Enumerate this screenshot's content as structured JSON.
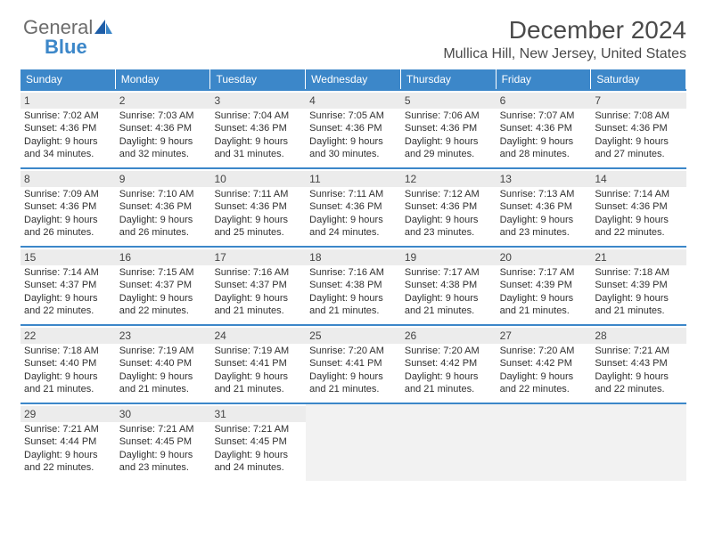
{
  "logo": {
    "text1": "General",
    "text2": "Blue"
  },
  "title": "December 2024",
  "location": "Mullica Hill, New Jersey, United States",
  "colors": {
    "header_bg": "#3c87c9",
    "header_text": "#ffffff",
    "week_rule": "#3c87c9",
    "daynum_shade": "#ececec",
    "empty_bg": "#f2f2f2",
    "body_text": "#303030",
    "title_text": "#4a4a4a"
  },
  "typography": {
    "title_fontsize": 28,
    "location_fontsize": 16,
    "dayheader_fontsize": 12,
    "cell_fontsize": 11,
    "daynum_fontsize": 12
  },
  "layout": {
    "columns": 7,
    "rows": 5,
    "cell_min_height": 86,
    "header_row_height": 22
  },
  "day_headers": [
    "Sunday",
    "Monday",
    "Tuesday",
    "Wednesday",
    "Thursday",
    "Friday",
    "Saturday"
  ],
  "weeks": [
    [
      {
        "n": "1",
        "sr": "Sunrise: 7:02 AM",
        "ss": "Sunset: 4:36 PM",
        "d1": "Daylight: 9 hours",
        "d2": "and 34 minutes."
      },
      {
        "n": "2",
        "sr": "Sunrise: 7:03 AM",
        "ss": "Sunset: 4:36 PM",
        "d1": "Daylight: 9 hours",
        "d2": "and 32 minutes."
      },
      {
        "n": "3",
        "sr": "Sunrise: 7:04 AM",
        "ss": "Sunset: 4:36 PM",
        "d1": "Daylight: 9 hours",
        "d2": "and 31 minutes."
      },
      {
        "n": "4",
        "sr": "Sunrise: 7:05 AM",
        "ss": "Sunset: 4:36 PM",
        "d1": "Daylight: 9 hours",
        "d2": "and 30 minutes."
      },
      {
        "n": "5",
        "sr": "Sunrise: 7:06 AM",
        "ss": "Sunset: 4:36 PM",
        "d1": "Daylight: 9 hours",
        "d2": "and 29 minutes."
      },
      {
        "n": "6",
        "sr": "Sunrise: 7:07 AM",
        "ss": "Sunset: 4:36 PM",
        "d1": "Daylight: 9 hours",
        "d2": "and 28 minutes."
      },
      {
        "n": "7",
        "sr": "Sunrise: 7:08 AM",
        "ss": "Sunset: 4:36 PM",
        "d1": "Daylight: 9 hours",
        "d2": "and 27 minutes."
      }
    ],
    [
      {
        "n": "8",
        "sr": "Sunrise: 7:09 AM",
        "ss": "Sunset: 4:36 PM",
        "d1": "Daylight: 9 hours",
        "d2": "and 26 minutes."
      },
      {
        "n": "9",
        "sr": "Sunrise: 7:10 AM",
        "ss": "Sunset: 4:36 PM",
        "d1": "Daylight: 9 hours",
        "d2": "and 26 minutes."
      },
      {
        "n": "10",
        "sr": "Sunrise: 7:11 AM",
        "ss": "Sunset: 4:36 PM",
        "d1": "Daylight: 9 hours",
        "d2": "and 25 minutes."
      },
      {
        "n": "11",
        "sr": "Sunrise: 7:11 AM",
        "ss": "Sunset: 4:36 PM",
        "d1": "Daylight: 9 hours",
        "d2": "and 24 minutes."
      },
      {
        "n": "12",
        "sr": "Sunrise: 7:12 AM",
        "ss": "Sunset: 4:36 PM",
        "d1": "Daylight: 9 hours",
        "d2": "and 23 minutes."
      },
      {
        "n": "13",
        "sr": "Sunrise: 7:13 AM",
        "ss": "Sunset: 4:36 PM",
        "d1": "Daylight: 9 hours",
        "d2": "and 23 minutes."
      },
      {
        "n": "14",
        "sr": "Sunrise: 7:14 AM",
        "ss": "Sunset: 4:36 PM",
        "d1": "Daylight: 9 hours",
        "d2": "and 22 minutes."
      }
    ],
    [
      {
        "n": "15",
        "sr": "Sunrise: 7:14 AM",
        "ss": "Sunset: 4:37 PM",
        "d1": "Daylight: 9 hours",
        "d2": "and 22 minutes."
      },
      {
        "n": "16",
        "sr": "Sunrise: 7:15 AM",
        "ss": "Sunset: 4:37 PM",
        "d1": "Daylight: 9 hours",
        "d2": "and 22 minutes."
      },
      {
        "n": "17",
        "sr": "Sunrise: 7:16 AM",
        "ss": "Sunset: 4:37 PM",
        "d1": "Daylight: 9 hours",
        "d2": "and 21 minutes."
      },
      {
        "n": "18",
        "sr": "Sunrise: 7:16 AM",
        "ss": "Sunset: 4:38 PM",
        "d1": "Daylight: 9 hours",
        "d2": "and 21 minutes."
      },
      {
        "n": "19",
        "sr": "Sunrise: 7:17 AM",
        "ss": "Sunset: 4:38 PM",
        "d1": "Daylight: 9 hours",
        "d2": "and 21 minutes."
      },
      {
        "n": "20",
        "sr": "Sunrise: 7:17 AM",
        "ss": "Sunset: 4:39 PM",
        "d1": "Daylight: 9 hours",
        "d2": "and 21 minutes."
      },
      {
        "n": "21",
        "sr": "Sunrise: 7:18 AM",
        "ss": "Sunset: 4:39 PM",
        "d1": "Daylight: 9 hours",
        "d2": "and 21 minutes."
      }
    ],
    [
      {
        "n": "22",
        "sr": "Sunrise: 7:18 AM",
        "ss": "Sunset: 4:40 PM",
        "d1": "Daylight: 9 hours",
        "d2": "and 21 minutes."
      },
      {
        "n": "23",
        "sr": "Sunrise: 7:19 AM",
        "ss": "Sunset: 4:40 PM",
        "d1": "Daylight: 9 hours",
        "d2": "and 21 minutes."
      },
      {
        "n": "24",
        "sr": "Sunrise: 7:19 AM",
        "ss": "Sunset: 4:41 PM",
        "d1": "Daylight: 9 hours",
        "d2": "and 21 minutes."
      },
      {
        "n": "25",
        "sr": "Sunrise: 7:20 AM",
        "ss": "Sunset: 4:41 PM",
        "d1": "Daylight: 9 hours",
        "d2": "and 21 minutes."
      },
      {
        "n": "26",
        "sr": "Sunrise: 7:20 AM",
        "ss": "Sunset: 4:42 PM",
        "d1": "Daylight: 9 hours",
        "d2": "and 21 minutes."
      },
      {
        "n": "27",
        "sr": "Sunrise: 7:20 AM",
        "ss": "Sunset: 4:42 PM",
        "d1": "Daylight: 9 hours",
        "d2": "and 22 minutes."
      },
      {
        "n": "28",
        "sr": "Sunrise: 7:21 AM",
        "ss": "Sunset: 4:43 PM",
        "d1": "Daylight: 9 hours",
        "d2": "and 22 minutes."
      }
    ],
    [
      {
        "n": "29",
        "sr": "Sunrise: 7:21 AM",
        "ss": "Sunset: 4:44 PM",
        "d1": "Daylight: 9 hours",
        "d2": "and 22 minutes."
      },
      {
        "n": "30",
        "sr": "Sunrise: 7:21 AM",
        "ss": "Sunset: 4:45 PM",
        "d1": "Daylight: 9 hours",
        "d2": "and 23 minutes."
      },
      {
        "n": "31",
        "sr": "Sunrise: 7:21 AM",
        "ss": "Sunset: 4:45 PM",
        "d1": "Daylight: 9 hours",
        "d2": "and 24 minutes."
      },
      {
        "empty": true
      },
      {
        "empty": true
      },
      {
        "empty": true
      },
      {
        "empty": true
      }
    ]
  ]
}
